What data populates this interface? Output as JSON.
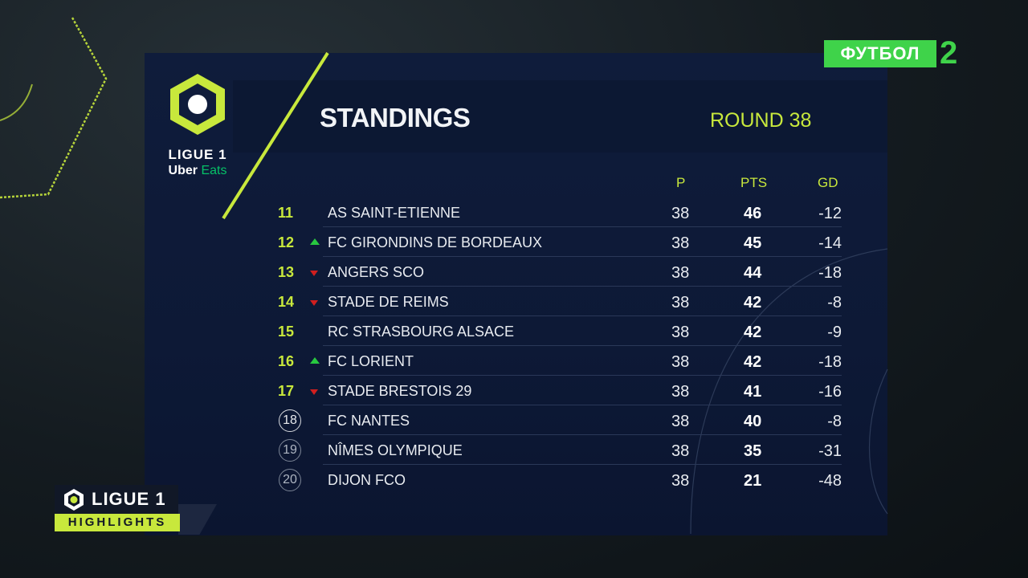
{
  "channel": {
    "name": "ФУТБОЛ",
    "number": "2"
  },
  "league_logo": {
    "name": "LIGUE 1",
    "sponsor_prefix": "Uber",
    "sponsor_suffix": "Eats"
  },
  "header": {
    "title": "STANDINGS",
    "round": "ROUND 38"
  },
  "columns": {
    "played": "P",
    "points": "PTS",
    "goal_diff": "GD"
  },
  "standings": [
    {
      "pos": "11",
      "trend": "none",
      "team": "AS SAINT-ETIENNE",
      "played": "38",
      "pts": "46",
      "gd": "-12",
      "zone": ""
    },
    {
      "pos": "12",
      "trend": "up",
      "team": "FC GIRONDINS DE BORDEAUX",
      "played": "38",
      "pts": "45",
      "gd": "-14",
      "zone": ""
    },
    {
      "pos": "13",
      "trend": "down",
      "team": "ANGERS SCO",
      "played": "38",
      "pts": "44",
      "gd": "-18",
      "zone": ""
    },
    {
      "pos": "14",
      "trend": "down",
      "team": "STADE DE REIMS",
      "played": "38",
      "pts": "42",
      "gd": "-8",
      "zone": ""
    },
    {
      "pos": "15",
      "trend": "none",
      "team": "RC STRASBOURG ALSACE",
      "played": "38",
      "pts": "42",
      "gd": "-9",
      "zone": ""
    },
    {
      "pos": "16",
      "trend": "up",
      "team": "FC LORIENT",
      "played": "38",
      "pts": "42",
      "gd": "-18",
      "zone": ""
    },
    {
      "pos": "17",
      "trend": "down",
      "team": "STADE BRESTOIS 29",
      "played": "38",
      "pts": "41",
      "gd": "-16",
      "zone": ""
    },
    {
      "pos": "18",
      "trend": "none",
      "team": "FC NANTES",
      "played": "38",
      "pts": "40",
      "gd": "-8",
      "zone": "playoff"
    },
    {
      "pos": "19",
      "trend": "none",
      "team": "NÎMES OLYMPIQUE",
      "played": "38",
      "pts": "35",
      "gd": "-31",
      "zone": "relegation"
    },
    {
      "pos": "20",
      "trend": "none",
      "team": "DIJON FCO",
      "played": "38",
      "pts": "21",
      "gd": "-48",
      "zone": "relegation"
    }
  ],
  "highlights_badge": {
    "title": "LIGUE 1",
    "subtitle": "HIGHLIGHTS"
  },
  "colors": {
    "accent": "#c8e83c",
    "channel_green": "#3fd34a",
    "panel": "#0f1c3b",
    "up": "#28c840",
    "down": "#d01f1f"
  }
}
